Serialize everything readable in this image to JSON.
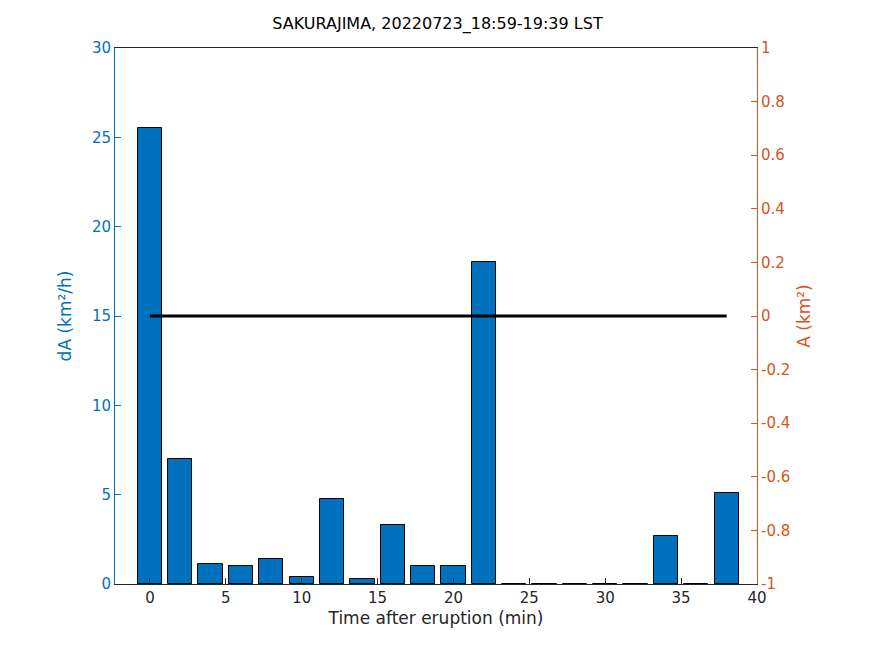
{
  "chart_data": {
    "type": "bar",
    "title": "SAKURAJIMA, 20220723_18:59-19:39 LST",
    "x_label": "Time after eruption (min)",
    "y_label": "dA (km²/h)",
    "y2_label": "A (km²)",
    "x": [
      0,
      2,
      4,
      6,
      8,
      10,
      12,
      14,
      16,
      18,
      20,
      22,
      24,
      26,
      28,
      30,
      32,
      34,
      36,
      38
    ],
    "series": [
      {
        "type": "bar",
        "color": "#0072bd",
        "values": [
          25.5,
          7.0,
          1.1,
          1.0,
          1.4,
          0.4,
          4.75,
          0.3,
          3.3,
          1.0,
          1.0,
          18.0,
          0,
          0,
          0,
          0,
          0,
          2.7,
          0,
          5.1
        ]
      },
      {
        "type": "line",
        "axis": "y2",
        "color": "#000000",
        "values": [
          0,
          0,
          0,
          0,
          0,
          0,
          0,
          0,
          0,
          0,
          0,
          0,
          0,
          0,
          0,
          0,
          0,
          0,
          0,
          0
        ]
      }
    ],
    "xlim": [
      -2.3,
      40
    ],
    "xticks": [
      0,
      5,
      10,
      15,
      20,
      25,
      30,
      35,
      40
    ],
    "ylim": [
      0,
      30
    ],
    "yticks": [
      0,
      5,
      10,
      15,
      20,
      25,
      30
    ],
    "y2lim": [
      -1,
      1
    ],
    "y2ticks": [
      -1,
      -0.8,
      -0.6,
      -0.4,
      -0.2,
      0,
      0.2,
      0.4,
      0.6,
      0.8,
      1
    ],
    "grid": false
  }
}
